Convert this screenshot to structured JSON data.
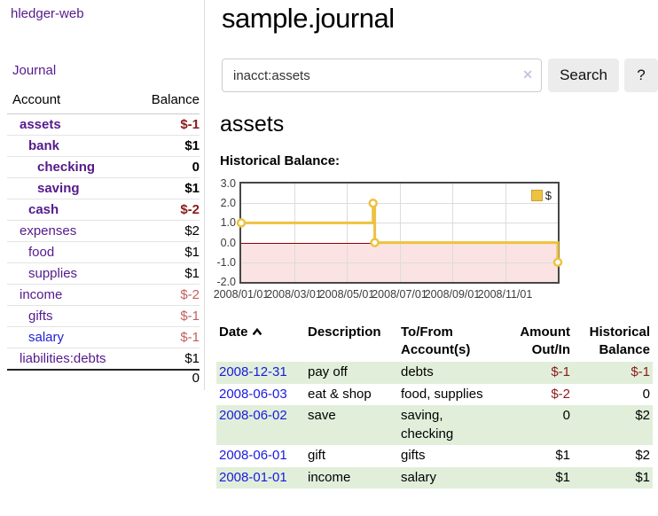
{
  "app": {
    "brand": "hledger-web",
    "nav_journal": "Journal"
  },
  "sidebar": {
    "header": {
      "account": "Account",
      "balance": "Balance"
    },
    "rows": [
      {
        "name": "assets",
        "indent": 1,
        "bold": true,
        "blue": false,
        "balance": "$-1",
        "neg": "dark"
      },
      {
        "name": "bank",
        "indent": 2,
        "bold": true,
        "blue": false,
        "balance": "$1",
        "neg": null
      },
      {
        "name": "checking",
        "indent": 3,
        "bold": true,
        "blue": false,
        "balance": "0",
        "neg": null
      },
      {
        "name": "saving",
        "indent": 3,
        "bold": true,
        "blue": false,
        "balance": "$1",
        "neg": null
      },
      {
        "name": "cash",
        "indent": 2,
        "bold": true,
        "blue": false,
        "balance": "$-2",
        "neg": "dark"
      },
      {
        "name": "expenses",
        "indent": 1,
        "bold": false,
        "blue": false,
        "balance": "$2",
        "neg": null
      },
      {
        "name": "food",
        "indent": 2,
        "bold": false,
        "blue": false,
        "balance": "$1",
        "neg": null
      },
      {
        "name": "supplies",
        "indent": 2,
        "bold": false,
        "blue": false,
        "balance": "$1",
        "neg": null
      },
      {
        "name": "income",
        "indent": 1,
        "bold": false,
        "blue": false,
        "balance": "$-2",
        "neg": "soft"
      },
      {
        "name": "gifts",
        "indent": 2,
        "bold": false,
        "blue": false,
        "balance": "$-1",
        "neg": "soft"
      },
      {
        "name": "salary",
        "indent": 2,
        "bold": false,
        "blue": true,
        "balance": "$-1",
        "neg": "soft"
      },
      {
        "name": "liabilities:debts",
        "indent": 1,
        "bold": false,
        "blue": false,
        "balance": "$1",
        "neg": null
      }
    ],
    "total": "0"
  },
  "main": {
    "title": "sample.journal",
    "search": {
      "value": "inacct:assets",
      "clear_label": "✕",
      "button": "Search",
      "help_button": "?"
    },
    "account_title": "assets",
    "chart_label": "Historical Balance:"
  },
  "chart_data": {
    "type": "line",
    "title": "Historical Balance",
    "step": true,
    "xlim": [
      "2008-01-01",
      "2008-12-31"
    ],
    "ylim": [
      -2,
      3
    ],
    "y_ticks": [
      "3.0",
      "2.0",
      "1.0",
      "0.0",
      "-1.0",
      "-2.0"
    ],
    "x_ticks": [
      "2008/01/01",
      "2008/03/01",
      "2008/05/01",
      "2008/07/01",
      "2008/09/01",
      "2008/11/01"
    ],
    "legend": {
      "label": "$"
    },
    "series": [
      {
        "name": "$",
        "color": "#edc240",
        "points": [
          {
            "x": "2008-01-01",
            "y": 1
          },
          {
            "x": "2008-06-01",
            "y": 2
          },
          {
            "x": "2008-06-03",
            "y": 0
          },
          {
            "x": "2008-12-31",
            "y": -1
          }
        ]
      }
    ],
    "colors": {
      "grid": "#dcdcdc",
      "border": "#474747",
      "zero_line": "#8b0000",
      "negative_region": "#fbe3e3",
      "legend_swatch_border": "#c9a235"
    },
    "legend_position": "top-right",
    "grid": true
  },
  "transactions": {
    "headers": {
      "date": "Date",
      "description": "Description",
      "accounts": "To/From Account(s)",
      "amount": "Amount Out/In",
      "balance": "Historical Balance"
    },
    "rows": [
      {
        "date": "2008-12-31",
        "description": "pay off",
        "accounts": "debts",
        "amount": "$-1",
        "amount_neg": true,
        "balance": "$-1",
        "balance_neg": true,
        "shaded": true
      },
      {
        "date": "2008-06-03",
        "description": "eat & shop",
        "accounts": "food, supplies",
        "amount": "$-2",
        "amount_neg": true,
        "balance": "0",
        "balance_neg": false,
        "shaded": false
      },
      {
        "date": "2008-06-02",
        "description": "save",
        "accounts": "saving, checking",
        "amount": "0",
        "amount_neg": false,
        "balance": "$2",
        "balance_neg": false,
        "shaded": true
      },
      {
        "date": "2008-06-01",
        "description": "gift",
        "accounts": "gifts",
        "amount": "$1",
        "amount_neg": false,
        "balance": "$2",
        "balance_neg": false,
        "shaded": false
      },
      {
        "date": "2008-01-01",
        "description": "income",
        "accounts": "salary",
        "amount": "$1",
        "amount_neg": false,
        "balance": "$1",
        "balance_neg": false,
        "shaded": true
      }
    ]
  }
}
